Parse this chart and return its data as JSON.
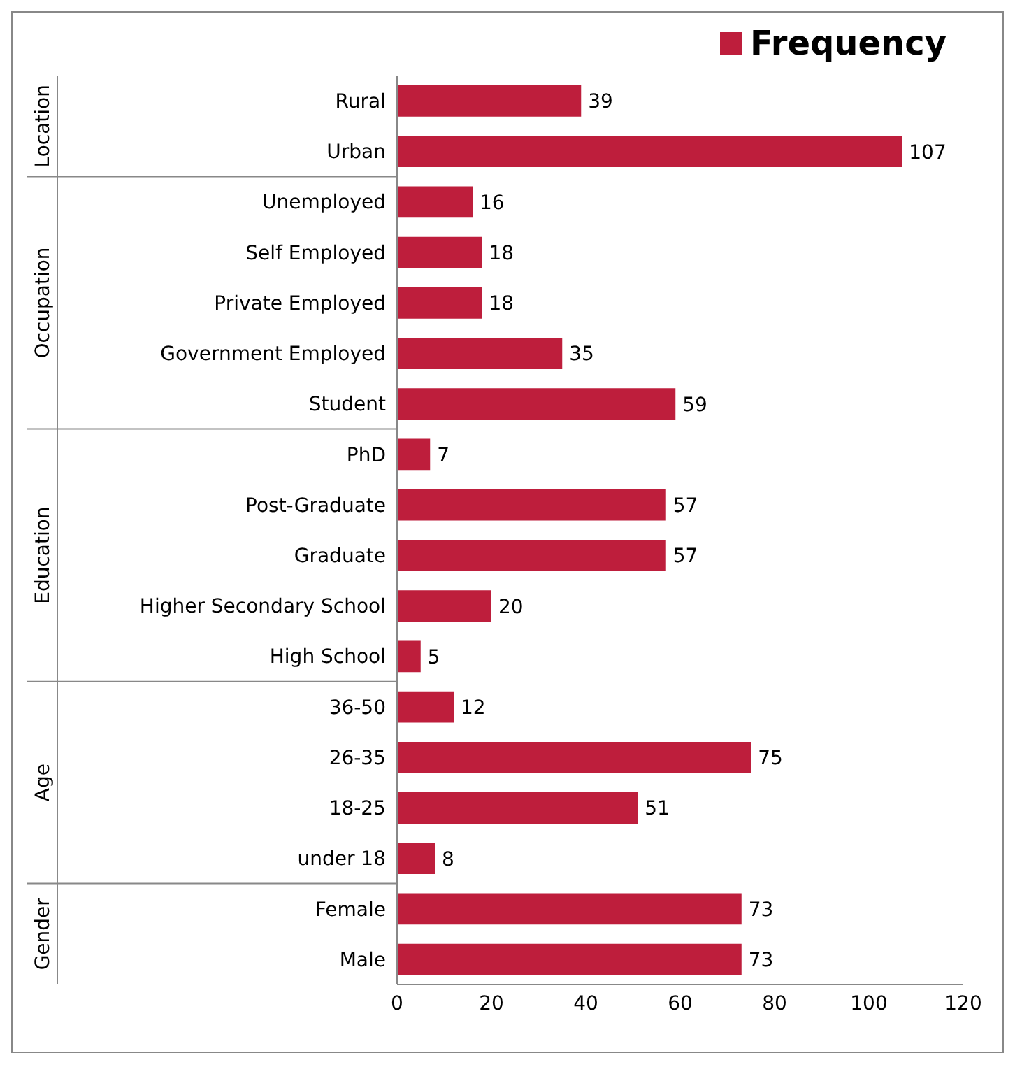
{
  "chart_data": {
    "type": "bar",
    "orientation": "horizontal",
    "categories": [
      "Rural",
      "Urban",
      "Unemployed",
      "Self Employed",
      "Private Employed",
      "Government Employed",
      "Student",
      "PhD",
      "Post-Graduate",
      "Graduate",
      "Higher Secondary School",
      "High School",
      "36-50",
      "26-35",
      "18-25",
      "under 18",
      "Female",
      "Male"
    ],
    "series": [
      {
        "name": "Frequency",
        "color": "#be1e3c",
        "values": [
          39,
          107,
          16,
          18,
          18,
          35,
          59,
          7,
          57,
          57,
          20,
          5,
          12,
          75,
          51,
          8,
          73,
          73
        ]
      }
    ],
    "xlim": [
      0,
      120
    ],
    "xticks": [
      0,
      20,
      40,
      60,
      80,
      100,
      120
    ],
    "data_labels": true,
    "legend": "top right",
    "grid": false,
    "annotations": [
      "Location",
      "Occupation",
      "Education",
      "Age",
      "Gender"
    ]
  }
}
